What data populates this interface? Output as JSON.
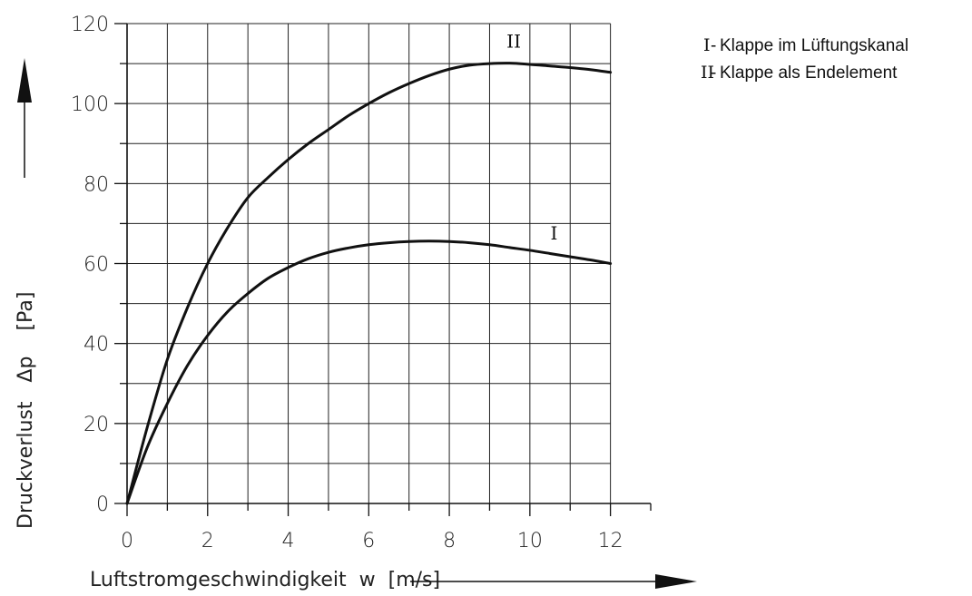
{
  "chart_data": {
    "type": "line",
    "xlabel": "Luftstromgeschwindigkeit  w  [m/s]",
    "ylabel": "Druckverlust   Δp    [Pa]",
    "xlim": [
      0,
      13
    ],
    "ylim": [
      0,
      120
    ],
    "x_ticks": [
      0,
      2,
      4,
      6,
      8,
      10,
      12
    ],
    "y_ticks": [
      0,
      20,
      40,
      60,
      80,
      100,
      120
    ],
    "grid": true,
    "legend_position": "top-right",
    "series": [
      {
        "name": "I",
        "color": "#111111",
        "x": [
          0,
          0.5,
          1,
          1.5,
          2,
          2.5,
          3,
          3.5,
          4,
          4.5,
          5,
          5.5,
          6,
          6.5,
          7,
          7.5,
          8,
          8.5,
          9,
          9.5,
          10,
          10.5,
          11,
          11.5,
          12
        ],
        "y": [
          0,
          14,
          25,
          34.5,
          42,
          48,
          52.5,
          56.3,
          59,
          61.2,
          62.8,
          63.9,
          64.7,
          65.2,
          65.5,
          65.6,
          65.5,
          65.2,
          64.7,
          64,
          63.3,
          62.5,
          61.7,
          60.9,
          60
        ]
      },
      {
        "name": "II",
        "color": "#111111",
        "x": [
          0,
          0.5,
          1,
          1.5,
          2,
          2.5,
          3,
          3.5,
          4,
          4.5,
          5,
          5.5,
          6,
          6.5,
          7,
          7.5,
          8,
          8.5,
          9,
          9.5,
          10,
          10.5,
          11,
          11.5,
          12
        ],
        "y": [
          0,
          19,
          36,
          49,
          60,
          69,
          76.5,
          81.5,
          86,
          90,
          93.5,
          97,
          100,
          102.7,
          105,
          107,
          108.6,
          109.6,
          110,
          110.1,
          109.8,
          109.4,
          109,
          108.5,
          107.8
        ]
      }
    ],
    "curve_labels": [
      {
        "text": "I",
        "x": 10.6,
        "y": 66
      },
      {
        "text": "II",
        "x": 9.6,
        "y": 114
      }
    ],
    "legend": [
      {
        "numeral": "I",
        "separator": "-",
        "text": "Klappe im Lüftungskanal"
      },
      {
        "numeral": "II",
        "separator": "-",
        "text": "Klappe als Endelement"
      }
    ]
  }
}
